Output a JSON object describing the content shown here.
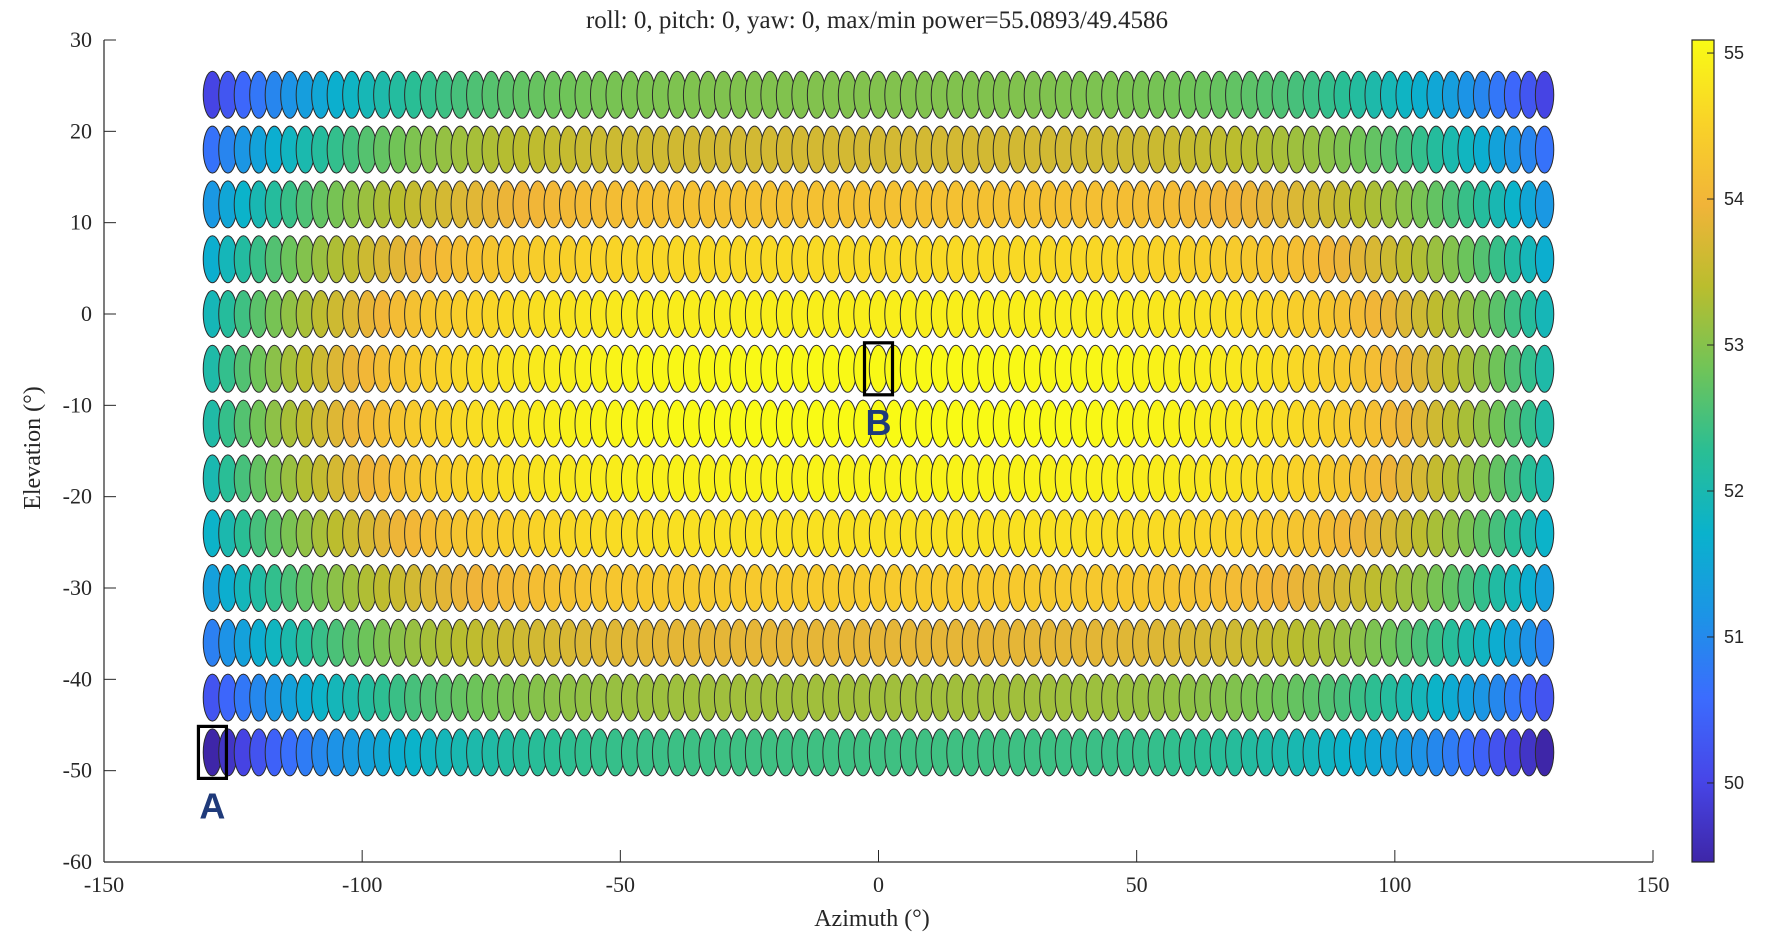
{
  "chart_data": {
    "type": "scatter",
    "title": "roll: 0, pitch: 0, yaw: 0, max/min power=55.0893/49.4586",
    "xlabel": "Azimuth (°)",
    "ylabel": "Elevation (°)",
    "xlim": [
      -150,
      150
    ],
    "ylim": [
      -60,
      30
    ],
    "x_ticks": [
      -150,
      -100,
      -50,
      0,
      50,
      100,
      150
    ],
    "y_ticks": [
      30,
      20,
      10,
      0,
      -10,
      -20,
      -30,
      -40,
      -50,
      -60
    ],
    "beam_grid": {
      "azimuth_start": -129,
      "azimuth_end": 129,
      "azimuth_step": 3,
      "elevations": [
        24,
        18,
        12,
        6,
        0,
        -6,
        -12,
        -18,
        -24,
        -30,
        -36,
        -42,
        -48
      ]
    },
    "power_max": 55.0893,
    "power_min": 49.4586,
    "colorbar": {
      "colormap": "parula",
      "ticks": [
        50,
        51,
        52,
        53,
        54,
        55
      ],
      "range": [
        49.4586,
        55.0893
      ]
    },
    "annotations": [
      {
        "label": "A",
        "azimuth": -129,
        "elevation": -48
      },
      {
        "label": "B",
        "azimuth": 0,
        "elevation": -6
      }
    ]
  }
}
